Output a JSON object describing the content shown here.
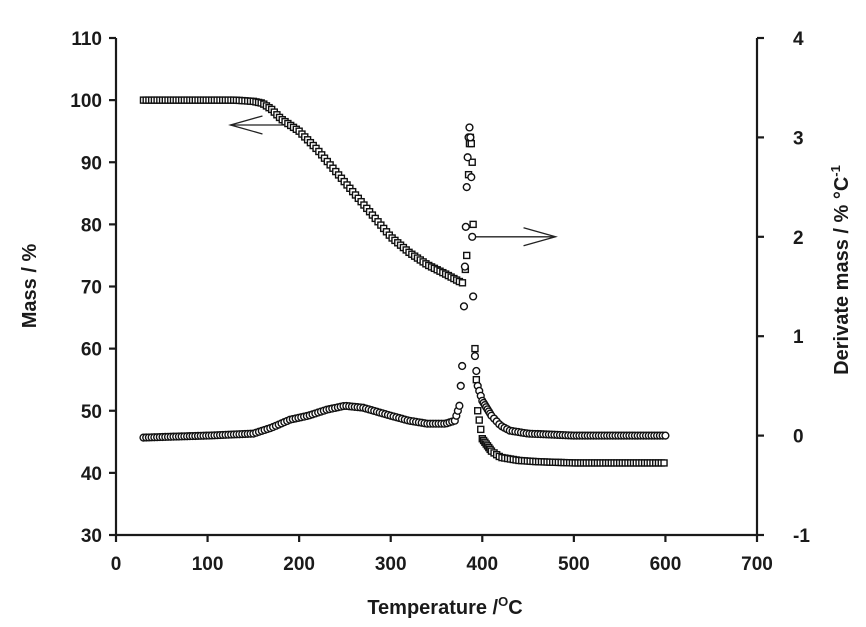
{
  "chart_data": {
    "type": "scatter",
    "title": "",
    "xlabel": "Temperature /",
    "xlabel_unit": "C",
    "xlabel_sup": "O",
    "ylabel_left": "Mass / %",
    "ylabel_right": "Derivate mass / % °C",
    "ylabel_right_sup": "-1",
    "xlim": [
      0,
      700
    ],
    "ylim_left": [
      30,
      110
    ],
    "ylim_right": [
      -1,
      4
    ],
    "x_ticks": [
      0,
      100,
      200,
      300,
      400,
      500,
      600,
      700
    ],
    "y_left_ticks": [
      30,
      40,
      50,
      60,
      70,
      80,
      90,
      100,
      110
    ],
    "y_right_ticks": [
      -1,
      0,
      1,
      2,
      3,
      4
    ],
    "grid": false,
    "legend": "none",
    "series": [
      {
        "axis": "left",
        "marker": "square",
        "points": [
          [
            30,
            100
          ],
          [
            100,
            100
          ],
          [
            130,
            100
          ],
          [
            150,
            99.8
          ],
          [
            160,
            99.5
          ],
          [
            170,
            98.5
          ],
          [
            180,
            97
          ],
          [
            200,
            95
          ],
          [
            220,
            92
          ],
          [
            240,
            88.5
          ],
          [
            260,
            85
          ],
          [
            280,
            81.5
          ],
          [
            300,
            78
          ],
          [
            320,
            75.5
          ],
          [
            340,
            73.5
          ],
          [
            360,
            72
          ],
          [
            375,
            70.8
          ],
          [
            380,
            70.5
          ],
          [
            383,
            75
          ],
          [
            385,
            88
          ],
          [
            386,
            93
          ],
          [
            387,
            94
          ],
          [
            388,
            93
          ],
          [
            389,
            90
          ],
          [
            390,
            80
          ],
          [
            392,
            60
          ],
          [
            395,
            50
          ],
          [
            400,
            45.5
          ],
          [
            410,
            43.5
          ],
          [
            420,
            42.5
          ],
          [
            440,
            42
          ],
          [
            460,
            41.8
          ],
          [
            480,
            41.7
          ],
          [
            500,
            41.6
          ],
          [
            550,
            41.6
          ],
          [
            600,
            41.6
          ]
        ]
      },
      {
        "axis": "right",
        "marker": "circle",
        "points": [
          [
            30,
            -0.02
          ],
          [
            100,
            0.0
          ],
          [
            150,
            0.02
          ],
          [
            170,
            0.08
          ],
          [
            190,
            0.16
          ],
          [
            210,
            0.2
          ],
          [
            230,
            0.26
          ],
          [
            250,
            0.3
          ],
          [
            270,
            0.28
          ],
          [
            300,
            0.2
          ],
          [
            320,
            0.15
          ],
          [
            340,
            0.12
          ],
          [
            360,
            0.12
          ],
          [
            370,
            0.15
          ],
          [
            375,
            0.3
          ],
          [
            378,
            0.7
          ],
          [
            380,
            1.3
          ],
          [
            381,
            1.7
          ],
          [
            382,
            2.1
          ],
          [
            383,
            2.5
          ],
          [
            384,
            2.8
          ],
          [
            385,
            3.0
          ],
          [
            386,
            3.1
          ],
          [
            387,
            3.0
          ],
          [
            388,
            2.6
          ],
          [
            389,
            2.0
          ],
          [
            390,
            1.4
          ],
          [
            392,
            0.8
          ],
          [
            395,
            0.5
          ],
          [
            400,
            0.35
          ],
          [
            410,
            0.2
          ],
          [
            420,
            0.1
          ],
          [
            430,
            0.05
          ],
          [
            450,
            0.02
          ],
          [
            500,
            0.0
          ],
          [
            550,
            0.0
          ],
          [
            600,
            0.0
          ]
        ]
      }
    ],
    "annotations": [
      {
        "type": "arrow",
        "direction": "left",
        "from": [
          185,
          96
        ],
        "to": [
          125,
          96
        ],
        "axis": "left",
        "meaning": "mass curve uses left axis"
      },
      {
        "type": "arrow",
        "direction": "right",
        "from": [
          393,
          2.0
        ],
        "to": [
          480,
          2.0
        ],
        "axis": "right",
        "meaning": "derivative curve uses right axis"
      }
    ]
  }
}
